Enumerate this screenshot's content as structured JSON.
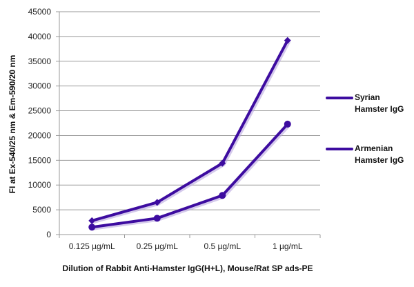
{
  "chart_data": {
    "type": "line",
    "title": "",
    "xlabel": "Dilution of Rabbit Anti-Hamster IgG(H+L), Mouse/Rat SP ads-PE",
    "ylabel": "FI at Ex-540/25 nm & Em-590/20 nm",
    "categories": [
      "0.125 µg/mL",
      "0.25 µg/mL",
      "0.5 µg/mL",
      "1 µg/mL"
    ],
    "ylim": [
      0,
      45000
    ],
    "yticks": [
      0,
      5000,
      10000,
      15000,
      20000,
      25000,
      30000,
      35000,
      40000,
      45000
    ],
    "grid": true,
    "legend_position": "right",
    "series": [
      {
        "name": "Syrian Hamster IgG",
        "marker": "diamond",
        "color": "#3d0ca0",
        "values": [
          2800,
          6500,
          14400,
          39200
        ]
      },
      {
        "name": "Armenian Hamster IgG",
        "marker": "circle",
        "color": "#3d0ca0",
        "values": [
          1500,
          3300,
          7900,
          22300
        ]
      }
    ]
  },
  "legend": {
    "items": [
      {
        "line1": "Syrian",
        "line2": "Hamster IgG"
      },
      {
        "line1": "Armenian",
        "line2": "Hamster IgG"
      }
    ]
  }
}
